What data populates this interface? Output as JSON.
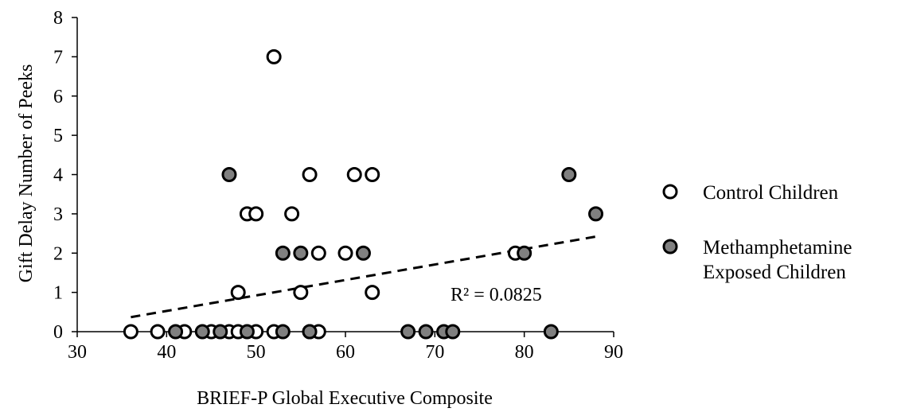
{
  "chart_data": {
    "type": "scatter",
    "title": "",
    "xlabel": "BRIEF-P Global Executive Composite",
    "ylabel": "Gift Delay Number of Peeks",
    "xlim": [
      30,
      90
    ],
    "ylim": [
      0,
      8
    ],
    "x_ticks": [
      30,
      40,
      50,
      60,
      70,
      80,
      90
    ],
    "y_ticks": [
      0,
      1,
      2,
      3,
      4,
      5,
      6,
      7,
      8
    ],
    "grid": false,
    "legend_position": "right",
    "series": [
      {
        "name": "Control Children",
        "marker": "open-circle",
        "color": "#ffffff",
        "stroke": "#000000",
        "points": [
          [
            52,
            7
          ],
          [
            56,
            4
          ],
          [
            61,
            4
          ],
          [
            63,
            4
          ],
          [
            49,
            3
          ],
          [
            50,
            3
          ],
          [
            54,
            3
          ],
          [
            57,
            2
          ],
          [
            60,
            2
          ],
          [
            79,
            2
          ],
          [
            48,
            1
          ],
          [
            55,
            1
          ],
          [
            63,
            1
          ],
          [
            36,
            0
          ],
          [
            39,
            0
          ],
          [
            42,
            0
          ],
          [
            45,
            0
          ],
          [
            47,
            0
          ],
          [
            48,
            0
          ],
          [
            50,
            0
          ],
          [
            52,
            0
          ],
          [
            56,
            0
          ],
          [
            57,
            0
          ]
        ]
      },
      {
        "name": "Methamphetamine Exposed Children",
        "marker": "filled-circle",
        "color": "#808080",
        "stroke": "#000000",
        "points": [
          [
            47,
            4
          ],
          [
            85,
            4
          ],
          [
            88,
            3
          ],
          [
            53,
            2
          ],
          [
            55,
            2
          ],
          [
            62,
            2
          ],
          [
            80,
            2
          ],
          [
            41,
            0
          ],
          [
            44,
            0
          ],
          [
            46,
            0
          ],
          [
            49,
            0
          ],
          [
            53,
            0
          ],
          [
            56,
            0
          ],
          [
            67,
            0
          ],
          [
            69,
            0
          ],
          [
            71,
            0
          ],
          [
            72,
            0
          ],
          [
            83,
            0
          ]
        ]
      }
    ],
    "trendline": {
      "style": "dashed",
      "color": "#000000",
      "x": [
        36,
        88
      ],
      "y": [
        0.37,
        2.42
      ],
      "label": "R² = 0.0825"
    }
  },
  "legend": {
    "items": [
      {
        "label_line1": "Control Children",
        "label_line2": ""
      },
      {
        "label_line1": "Methamphetamine",
        "label_line2": "Exposed Children"
      }
    ]
  }
}
